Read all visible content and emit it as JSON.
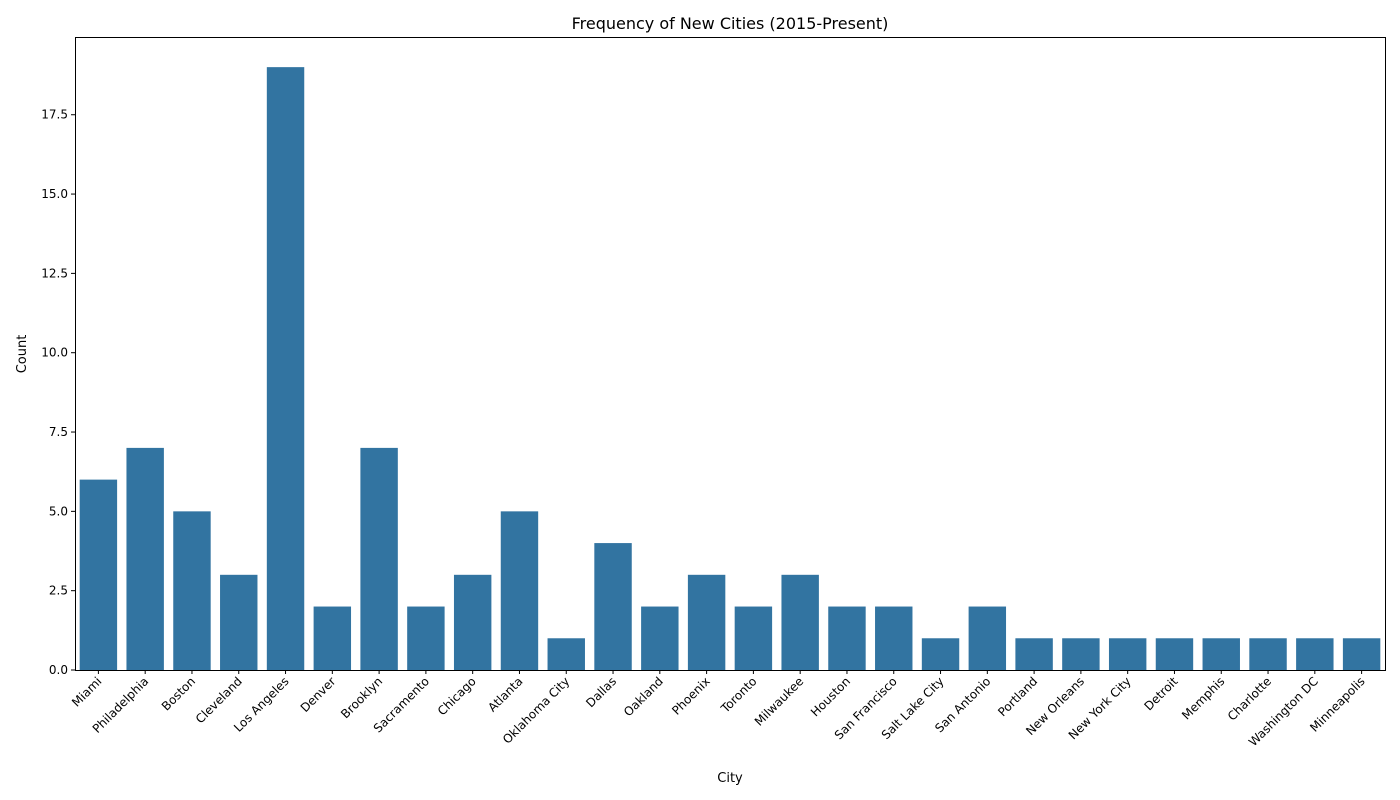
{
  "chart_data": {
    "type": "bar",
    "title": "Frequency of New Cities (2015-Present)",
    "xlabel": "City",
    "ylabel": "Count",
    "categories": [
      "Miami",
      "Philadelphia",
      "Boston",
      "Cleveland",
      "Los Angeles",
      "Denver",
      "Brooklyn",
      "Sacramento",
      "Chicago",
      "Atlanta",
      "Oklahoma City",
      "Dallas",
      "Oakland",
      "Phoenix",
      "Toronto",
      "Milwaukee",
      "Houston",
      "San Francisco",
      "Salt Lake City",
      "San Antonio",
      "Portland",
      "New Orleans",
      "New York City",
      "Detroit",
      "Memphis",
      "Charlotte",
      "Washington DC",
      "Minneapolis"
    ],
    "values": [
      6,
      7,
      5,
      3,
      19,
      2,
      7,
      2,
      3,
      5,
      1,
      4,
      2,
      3,
      2,
      3,
      2,
      2,
      1,
      2,
      1,
      1,
      1,
      1,
      1,
      1,
      1,
      1
    ],
    "ylim": [
      0,
      19.95
    ],
    "yticks": [
      "0.0",
      "2.5",
      "5.0",
      "7.5",
      "10.0",
      "12.5",
      "15.0",
      "17.5"
    ],
    "bar_color": "#3274a1",
    "grid": false,
    "legend": "none"
  }
}
